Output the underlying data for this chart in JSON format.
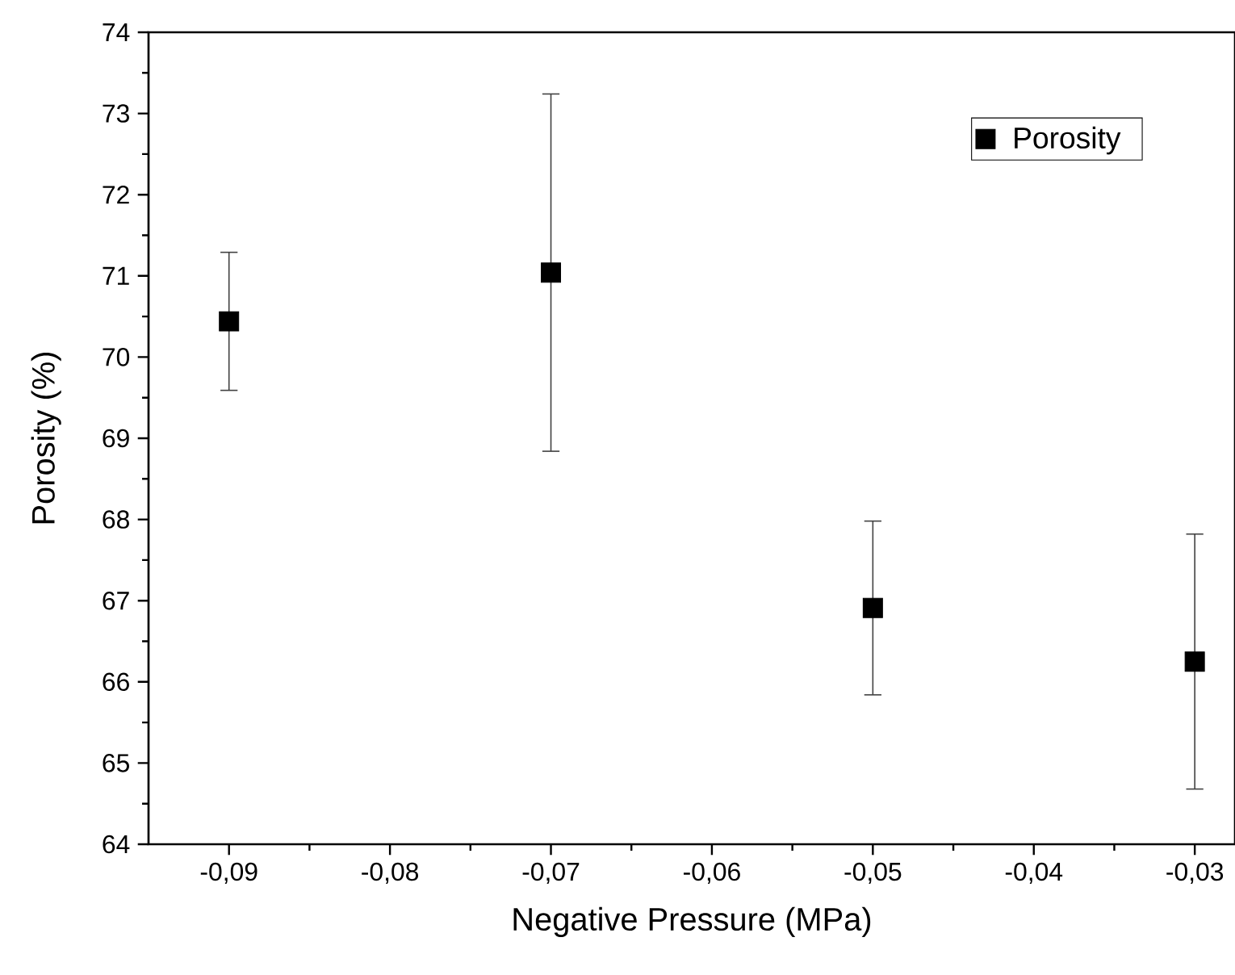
{
  "chart_data": {
    "type": "scatter",
    "xlabel": "Negative Pressure (MPa)",
    "ylabel": "Porosity (%)",
    "x": [
      -0.09,
      -0.07,
      -0.05,
      -0.03
    ],
    "series": [
      {
        "name": "Porosity",
        "color": "#000000",
        "values": [
          70.44,
          71.04,
          66.91,
          66.25
        ],
        "errors": [
          0.85,
          2.2,
          1.07,
          1.57
        ]
      }
    ],
    "marker": "square",
    "legend": "top right",
    "xlim": [
      -0.095,
      -0.0275
    ],
    "ylim": [
      64,
      74
    ],
    "xticks": [
      {
        "value": -0.09,
        "label": "-0,09"
      },
      {
        "value": -0.08,
        "label": "-0,08"
      },
      {
        "value": -0.07,
        "label": "-0,07"
      },
      {
        "value": -0.06,
        "label": "-0,06"
      },
      {
        "value": -0.05,
        "label": "-0,05"
      },
      {
        "value": -0.04,
        "label": "-0,04"
      },
      {
        "value": -0.03,
        "label": "-0,03"
      }
    ],
    "yticks": [
      64,
      65,
      66,
      67,
      68,
      69,
      70,
      71,
      72,
      73,
      74
    ]
  }
}
